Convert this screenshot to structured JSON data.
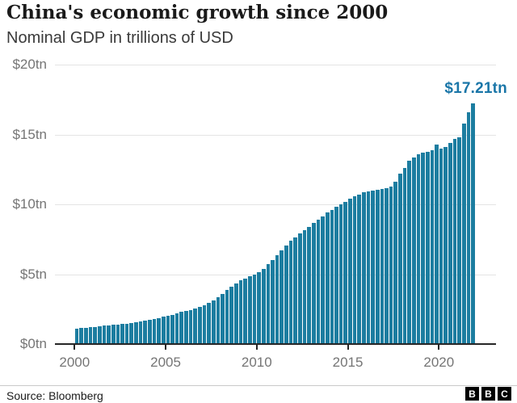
{
  "chart_data": {
    "type": "bar",
    "title": "China's economic growth since 2000",
    "subtitle": "Nominal GDP in trillions of USD",
    "unit": "trillions of USD",
    "frequency": "quarterly",
    "start_period": "2000 Q1",
    "end_period": "2021 Q4",
    "values": [
      1.1,
      1.13,
      1.17,
      1.21,
      1.24,
      1.28,
      1.31,
      1.34,
      1.38,
      1.41,
      1.44,
      1.47,
      1.52,
      1.56,
      1.61,
      1.66,
      1.72,
      1.79,
      1.87,
      1.95,
      2.02,
      2.1,
      2.19,
      2.29,
      2.35,
      2.45,
      2.55,
      2.65,
      2.78,
      2.95,
      3.15,
      3.35,
      3.6,
      3.85,
      4.1,
      4.35,
      4.55,
      4.7,
      4.85,
      5.0,
      5.15,
      5.4,
      5.7,
      6.0,
      6.35,
      6.7,
      7.05,
      7.4,
      7.65,
      7.9,
      8.15,
      8.4,
      8.65,
      8.9,
      9.15,
      9.4,
      9.6,
      9.8,
      10.0,
      10.2,
      10.4,
      10.55,
      10.7,
      10.85,
      10.95,
      11.0,
      11.05,
      11.1,
      11.15,
      11.3,
      11.6,
      12.2,
      12.6,
      13.1,
      13.35,
      13.6,
      13.7,
      13.75,
      13.9,
      14.3,
      14.0,
      14.1,
      14.4,
      14.7,
      14.8,
      15.8,
      16.6,
      17.21
    ],
    "ylim": [
      0,
      20
    ],
    "y_ticks": [
      {
        "value": 0,
        "label": "$0tn"
      },
      {
        "value": 5,
        "label": "$5tn"
      },
      {
        "value": 10,
        "label": "$10tn"
      },
      {
        "value": 15,
        "label": "$15tn"
      },
      {
        "value": 20,
        "label": "$20tn"
      }
    ],
    "x_ticks": [
      "2000",
      "2005",
      "2010",
      "2015",
      "2020"
    ],
    "grid": true,
    "legend": "none",
    "bar_color": "#1c7da0",
    "annotation": {
      "text": "$17.21tn",
      "value": 17.21,
      "color": "#1a76a8"
    },
    "axis_color": "#262626",
    "grid_color": "#e4e4e4",
    "tick_label_color": "#757575"
  },
  "footer": {
    "source": "Source: Bloomberg",
    "logo_letters": [
      "B",
      "B",
      "C"
    ]
  }
}
